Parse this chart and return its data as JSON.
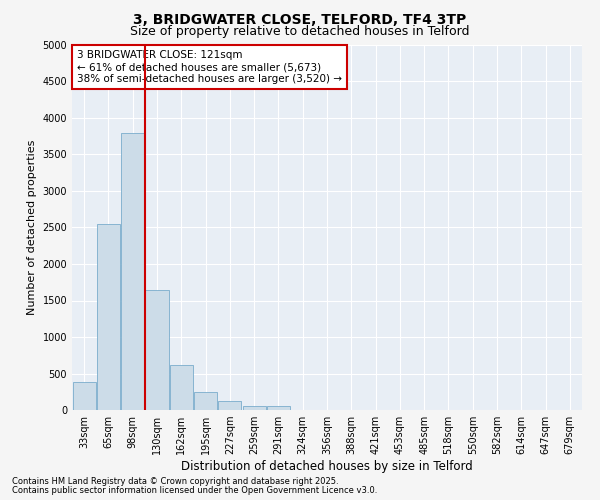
{
  "title": "3, BRIDGWATER CLOSE, TELFORD, TF4 3TP",
  "subtitle": "Size of property relative to detached houses in Telford",
  "xlabel": "Distribution of detached houses by size in Telford",
  "ylabel": "Number of detached properties",
  "categories": [
    "33sqm",
    "65sqm",
    "98sqm",
    "130sqm",
    "162sqm",
    "195sqm",
    "227sqm",
    "259sqm",
    "291sqm",
    "324sqm",
    "356sqm",
    "388sqm",
    "421sqm",
    "453sqm",
    "485sqm",
    "518sqm",
    "550sqm",
    "582sqm",
    "614sqm",
    "647sqm",
    "679sqm"
  ],
  "values": [
    380,
    2550,
    3800,
    1650,
    620,
    250,
    120,
    50,
    50,
    0,
    0,
    0,
    0,
    0,
    0,
    0,
    0,
    0,
    0,
    0,
    0
  ],
  "bar_color": "#ccdce8",
  "bar_edge_color": "#7aadcc",
  "vline_color": "#cc0000",
  "vline_xidx": 2.5,
  "ylim": [
    0,
    5000
  ],
  "yticks": [
    0,
    500,
    1000,
    1500,
    2000,
    2500,
    3000,
    3500,
    4000,
    4500,
    5000
  ],
  "annotation_text": "3 BRIDGWATER CLOSE: 121sqm\n← 61% of detached houses are smaller (5,673)\n38% of semi-detached houses are larger (3,520) →",
  "annotation_box_facecolor": "#ffffff",
  "annotation_box_edgecolor": "#cc0000",
  "footnote1": "Contains HM Land Registry data © Crown copyright and database right 2025.",
  "footnote2": "Contains public sector information licensed under the Open Government Licence v3.0.",
  "fig_bg_color": "#f5f5f5",
  "plot_bg_color": "#e8eef5",
  "grid_color": "#ffffff",
  "title_fontsize": 10,
  "subtitle_fontsize": 9,
  "tick_fontsize": 7,
  "xlabel_fontsize": 8.5,
  "ylabel_fontsize": 8,
  "annotation_fontsize": 7.5,
  "footnote_fontsize": 6
}
